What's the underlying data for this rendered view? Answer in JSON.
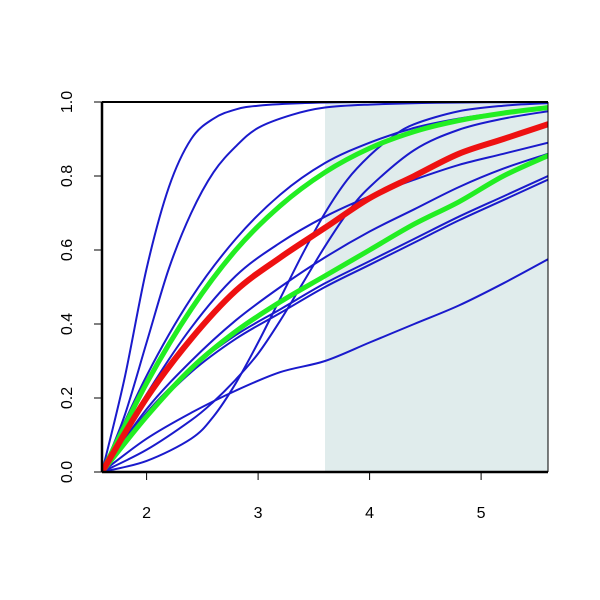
{
  "chart_data": {
    "type": "line",
    "title": "",
    "xlabel": "",
    "ylabel": "",
    "xlim": [
      1.6,
      5.6
    ],
    "ylim": [
      0,
      1
    ],
    "xticks": [
      "2",
      "3",
      "4",
      "5"
    ],
    "yticks": [
      "0.0",
      "0.2",
      "0.4",
      "0.6",
      "0.8",
      "1.0"
    ],
    "grid": false,
    "legend": "none",
    "shaded_region": {
      "x_from": 3.6,
      "x_to": 5.6,
      "color": "#e0ecec"
    },
    "colors": {
      "blue": "#1a1acc",
      "green": "#22ee22",
      "red": "#ee1111"
    },
    "series": [
      {
        "color": "blue",
        "points": [
          [
            1.6,
            0
          ],
          [
            1.8,
            0.25
          ],
          [
            2.0,
            0.55
          ],
          [
            2.2,
            0.77
          ],
          [
            2.4,
            0.9
          ],
          [
            2.6,
            0.955
          ],
          [
            2.8,
            0.98
          ],
          [
            3.0,
            0.99
          ],
          [
            3.4,
            0.997
          ],
          [
            4.0,
            1.0
          ],
          [
            5.6,
            1.0
          ]
        ]
      },
      {
        "color": "blue",
        "points": [
          [
            1.6,
            0
          ],
          [
            1.8,
            0.15
          ],
          [
            2.0,
            0.35
          ],
          [
            2.2,
            0.55
          ],
          [
            2.4,
            0.7
          ],
          [
            2.6,
            0.81
          ],
          [
            2.8,
            0.88
          ],
          [
            3.0,
            0.93
          ],
          [
            3.3,
            0.965
          ],
          [
            3.6,
            0.985
          ],
          [
            4.0,
            0.993
          ],
          [
            4.6,
            0.998
          ],
          [
            5.6,
            1.0
          ]
        ]
      },
      {
        "color": "blue",
        "points": [
          [
            1.6,
            0
          ],
          [
            2.0,
            0.26
          ],
          [
            2.4,
            0.47
          ],
          [
            2.8,
            0.63
          ],
          [
            3.2,
            0.75
          ],
          [
            3.6,
            0.835
          ],
          [
            4.0,
            0.89
          ],
          [
            4.4,
            0.93
          ],
          [
            4.8,
            0.955
          ],
          [
            5.2,
            0.972
          ],
          [
            5.6,
            0.983
          ]
        ]
      },
      {
        "color": "blue",
        "points": [
          [
            1.6,
            0
          ],
          [
            2.0,
            0.21
          ],
          [
            2.4,
            0.39
          ],
          [
            2.8,
            0.53
          ],
          [
            3.2,
            0.62
          ],
          [
            3.6,
            0.69
          ],
          [
            4.0,
            0.745
          ],
          [
            4.4,
            0.79
          ],
          [
            4.8,
            0.83
          ],
          [
            5.2,
            0.86
          ],
          [
            5.6,
            0.89
          ]
        ]
      },
      {
        "color": "blue",
        "points": [
          [
            1.6,
            0
          ],
          [
            2.0,
            0.17
          ],
          [
            2.4,
            0.3
          ],
          [
            2.8,
            0.41
          ],
          [
            3.2,
            0.5
          ],
          [
            3.6,
            0.58
          ],
          [
            4.0,
            0.65
          ],
          [
            4.4,
            0.71
          ],
          [
            4.8,
            0.77
          ],
          [
            5.2,
            0.82
          ],
          [
            5.6,
            0.86
          ]
        ]
      },
      {
        "color": "blue",
        "points": [
          [
            1.6,
            0
          ],
          [
            2.0,
            0.16
          ],
          [
            2.4,
            0.28
          ],
          [
            2.8,
            0.37
          ],
          [
            3.2,
            0.44
          ],
          [
            3.6,
            0.51
          ],
          [
            4.0,
            0.57
          ],
          [
            4.4,
            0.63
          ],
          [
            4.8,
            0.69
          ],
          [
            5.2,
            0.745
          ],
          [
            5.6,
            0.8
          ]
        ]
      },
      {
        "color": "blue",
        "points": [
          [
            1.6,
            0
          ],
          [
            2.0,
            0.15
          ],
          [
            2.4,
            0.27
          ],
          [
            2.8,
            0.36
          ],
          [
            3.2,
            0.43
          ],
          [
            3.6,
            0.5
          ],
          [
            4.0,
            0.56
          ],
          [
            4.4,
            0.62
          ],
          [
            4.8,
            0.68
          ],
          [
            5.2,
            0.735
          ],
          [
            5.6,
            0.79
          ]
        ]
      },
      {
        "color": "blue",
        "points": [
          [
            1.6,
            0
          ],
          [
            2.0,
            0.09
          ],
          [
            2.4,
            0.16
          ],
          [
            2.8,
            0.22
          ],
          [
            3.2,
            0.27
          ],
          [
            3.6,
            0.3
          ],
          [
            4.0,
            0.35
          ],
          [
            4.4,
            0.4
          ],
          [
            4.8,
            0.45
          ],
          [
            5.2,
            0.51
          ],
          [
            5.6,
            0.575
          ]
        ]
      },
      {
        "color": "blue",
        "points": [
          [
            1.6,
            0
          ],
          [
            2.0,
            0.03
          ],
          [
            2.4,
            0.09
          ],
          [
            2.6,
            0.15
          ],
          [
            2.8,
            0.24
          ],
          [
            3.0,
            0.35
          ],
          [
            3.2,
            0.47
          ],
          [
            3.4,
            0.59
          ],
          [
            3.6,
            0.7
          ],
          [
            3.8,
            0.79
          ],
          [
            4.0,
            0.855
          ],
          [
            4.2,
            0.905
          ],
          [
            4.4,
            0.94
          ],
          [
            4.8,
            0.975
          ],
          [
            5.2,
            0.99
          ],
          [
            5.6,
            0.997
          ]
        ]
      },
      {
        "color": "blue",
        "points": [
          [
            1.6,
            0
          ],
          [
            2.0,
            0.06
          ],
          [
            2.4,
            0.14
          ],
          [
            2.6,
            0.19
          ],
          [
            2.8,
            0.25
          ],
          [
            3.0,
            0.32
          ],
          [
            3.2,
            0.41
          ],
          [
            3.4,
            0.51
          ],
          [
            3.6,
            0.61
          ],
          [
            3.8,
            0.7
          ],
          [
            4.0,
            0.77
          ],
          [
            4.4,
            0.87
          ],
          [
            4.8,
            0.925
          ],
          [
            5.2,
            0.955
          ],
          [
            5.6,
            0.975
          ]
        ]
      },
      {
        "color": "green",
        "points": [
          [
            1.6,
            0
          ],
          [
            2.0,
            0.24
          ],
          [
            2.4,
            0.44
          ],
          [
            2.8,
            0.6
          ],
          [
            3.2,
            0.72
          ],
          [
            3.6,
            0.81
          ],
          [
            4.0,
            0.875
          ],
          [
            4.4,
            0.92
          ],
          [
            4.8,
            0.95
          ],
          [
            5.2,
            0.97
          ],
          [
            5.6,
            0.985
          ]
        ]
      },
      {
        "color": "green",
        "points": [
          [
            1.6,
            0
          ],
          [
            2.0,
            0.15
          ],
          [
            2.4,
            0.28
          ],
          [
            2.8,
            0.38
          ],
          [
            3.2,
            0.46
          ],
          [
            3.6,
            0.53
          ],
          [
            4.0,
            0.6
          ],
          [
            4.4,
            0.67
          ],
          [
            4.8,
            0.73
          ],
          [
            5.2,
            0.8
          ],
          [
            5.6,
            0.855
          ]
        ]
      },
      {
        "color": "red",
        "points": [
          [
            1.6,
            0
          ],
          [
            2.0,
            0.2
          ],
          [
            2.4,
            0.36
          ],
          [
            2.8,
            0.49
          ],
          [
            3.2,
            0.58
          ],
          [
            3.6,
            0.66
          ],
          [
            4.0,
            0.74
          ],
          [
            4.4,
            0.8
          ],
          [
            4.8,
            0.86
          ],
          [
            5.2,
            0.9
          ],
          [
            5.6,
            0.94
          ]
        ]
      }
    ]
  }
}
